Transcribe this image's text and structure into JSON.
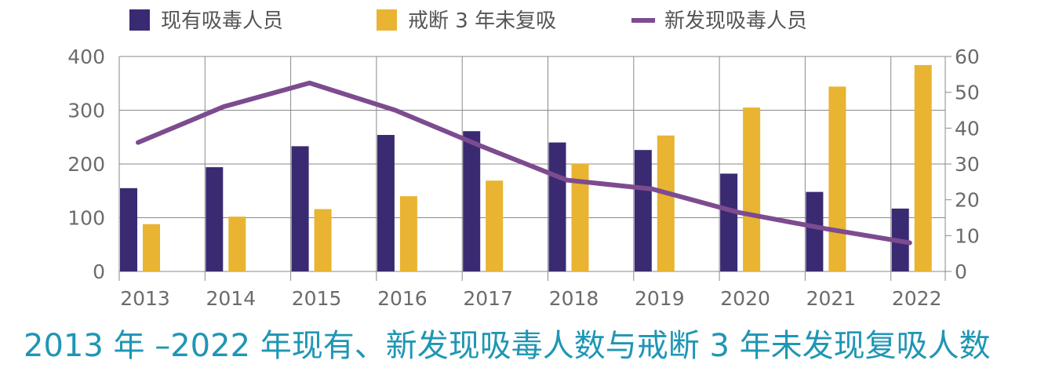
{
  "chart_data": {
    "type": "bar",
    "title": "2013 年 –2022 年现有、新发现吸毒人数与戒断 3 年未发现复吸人数",
    "categories": [
      "2013",
      "2014",
      "2015",
      "2016",
      "2017",
      "2018",
      "2019",
      "2020",
      "2021",
      "2022"
    ],
    "series": [
      {
        "name": "现有吸毒人员",
        "type": "bar",
        "axis": "left",
        "color": "#3a2a72",
        "values": [
          155,
          194,
          233,
          254,
          261,
          240,
          226,
          182,
          148,
          117
        ]
      },
      {
        "name": "戒断 3 年未复吸",
        "type": "bar",
        "axis": "left",
        "color": "#e8b431",
        "values": [
          88,
          102,
          116,
          140,
          169,
          201,
          253,
          305,
          344,
          384
        ]
      },
      {
        "name": "新发现吸毒人员",
        "type": "line",
        "axis": "right",
        "color": "#7d4b8f",
        "values": [
          36.0,
          46.0,
          52.6,
          45.0,
          35.0,
          25.5,
          23.0,
          16.5,
          12.0,
          8.0
        ]
      }
    ],
    "y_left": {
      "ylim": [
        0,
        400
      ],
      "ticks": [
        "0",
        "100",
        "200",
        "300",
        "400"
      ]
    },
    "y_right": {
      "ylim": [
        0,
        60
      ],
      "ticks": [
        "0",
        "10",
        "20",
        "30",
        "40",
        "50",
        "60"
      ]
    },
    "grid": true,
    "legend_position": "top"
  }
}
